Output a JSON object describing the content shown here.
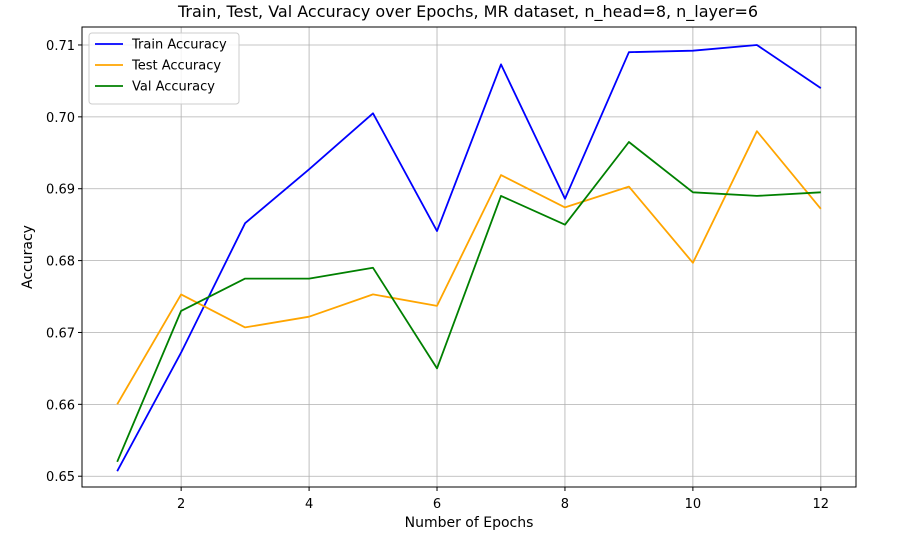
{
  "chart_data": {
    "type": "line",
    "title": "Train, Test, Val Accuracy over Epochs, MR dataset, n_head=8, n_layer=6",
    "xlabel": "Number of Epochs",
    "ylabel": "Accuracy",
    "x": [
      1,
      2,
      3,
      4,
      5,
      6,
      7,
      8,
      9,
      10,
      11,
      12
    ],
    "xlim": [
      0.45,
      12.55
    ],
    "ylim": [
      0.6485,
      0.7125
    ],
    "xticks": [
      2,
      4,
      6,
      8,
      10,
      12
    ],
    "xtick_labels": [
      "2",
      "4",
      "6",
      "8",
      "10",
      "12"
    ],
    "yticks": [
      0.65,
      0.66,
      0.67,
      0.68,
      0.69,
      0.7,
      0.71
    ],
    "ytick_labels": [
      "0.65",
      "0.66",
      "0.67",
      "0.68",
      "0.69",
      "0.70",
      "0.71"
    ],
    "grid": true,
    "legend_position": "top-left",
    "series": [
      {
        "name": "Train Accuracy",
        "color": "#0000ff",
        "values": [
          0.6507,
          0.6672,
          0.6852,
          0.6927,
          0.7005,
          0.6841,
          0.7073,
          0.6886,
          0.709,
          0.7092,
          0.71,
          0.704
        ]
      },
      {
        "name": "Test Accuracy",
        "color": "#ffa500",
        "values": [
          0.66,
          0.6753,
          0.6707,
          0.6722,
          0.6753,
          0.6737,
          0.6919,
          0.6874,
          0.6903,
          0.6797,
          0.698,
          0.6872
        ]
      },
      {
        "name": "Val Accuracy",
        "color": "#008000",
        "values": [
          0.652,
          0.673,
          0.6775,
          0.6775,
          0.679,
          0.665,
          0.689,
          0.685,
          0.6965,
          0.6895,
          0.689,
          0.6895
        ]
      }
    ]
  }
}
